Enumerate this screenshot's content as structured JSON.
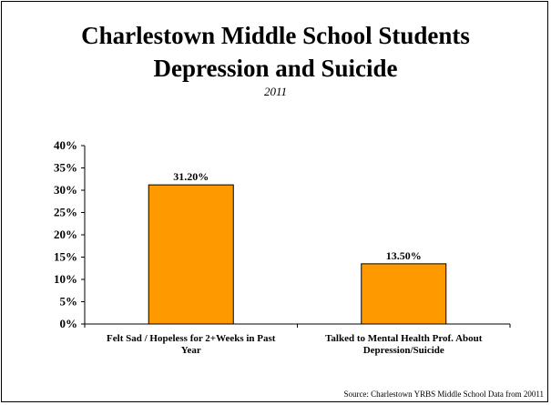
{
  "title_line1": "Charlestown Middle School Students",
  "title_line2": "Depression and Suicide",
  "subtitle": "2011",
  "source": "Source: Charlestown YRBS Middle School Data from 20011",
  "colors": {
    "bar_fill": "#ff9900",
    "bar_stroke": "#000000",
    "axis": "#000000",
    "background": "#ffffff"
  },
  "chart_data": {
    "type": "bar",
    "title": "Charlestown Middle School Students Depression and Suicide",
    "subtitle": "2011",
    "categories": [
      "Felt Sad / Hopeless for 2+Weeks in Past Year",
      "Talked to Mental Health Prof. About Depression/Suicide"
    ],
    "category_lines": [
      [
        "Felt Sad / Hopeless for 2+Weeks in Past",
        "Year"
      ],
      [
        "Talked to Mental Health Prof. About",
        "Depression/Suicide"
      ]
    ],
    "values": [
      31.2,
      13.5
    ],
    "data_labels": [
      "31.20%",
      "13.50%"
    ],
    "y_ticks": [
      "0%",
      "5%",
      "10%",
      "15%",
      "20%",
      "25%",
      "30%",
      "35%",
      "40%"
    ],
    "ylim": [
      0,
      40
    ],
    "y_unit": "%",
    "grid": false,
    "legend": "none"
  }
}
